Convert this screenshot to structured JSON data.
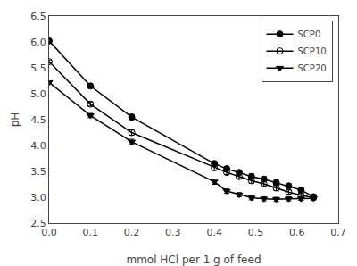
{
  "chart_data": {
    "type": "line",
    "xlabel": "mmol HCl per 1 g of feed",
    "ylabel": "pH",
    "x": [
      0.0,
      0.1,
      0.2,
      0.4,
      0.43,
      0.46,
      0.49,
      0.52,
      0.55,
      0.58,
      0.61,
      0.64
    ],
    "series": [
      {
        "name": "SCP0",
        "color": "black",
        "marker": "circle",
        "values": [
          6.02,
          5.15,
          4.55,
          3.65,
          3.55,
          3.48,
          3.4,
          3.35,
          3.28,
          3.22,
          3.14,
          3.01
        ],
        "yerr": [
          0.03,
          0.04,
          0.05,
          0.05,
          0.04,
          0.04,
          0.05,
          0.05,
          0.05,
          0.04,
          0.04,
          0.03
        ]
      },
      {
        "name": "SCP10",
        "color": "black",
        "marker": "circle-open",
        "values": [
          5.62,
          4.8,
          4.25,
          3.57,
          3.48,
          3.4,
          3.32,
          3.26,
          3.18,
          3.1,
          3.04,
          2.99
        ],
        "yerr": [
          0.03,
          0.04,
          0.05,
          0.05,
          0.04,
          0.04,
          0.05,
          0.04,
          0.05,
          0.04,
          0.03,
          0.03
        ]
      },
      {
        "name": "SCP20",
        "color": "black",
        "marker": "triangle-down",
        "values": [
          5.22,
          4.58,
          4.07,
          3.3,
          3.12,
          3.05,
          2.99,
          2.97,
          2.96,
          2.97,
          2.97,
          2.98
        ],
        "yerr": [
          0.03,
          0.04,
          0.05,
          0.05,
          0.04,
          0.04,
          0.04,
          0.04,
          0.04,
          0.04,
          0.03,
          0.03
        ]
      }
    ],
    "xlim": [
      0.0,
      0.7
    ],
    "ylim": [
      2.5,
      6.5
    ],
    "xticks": [
      {
        "value": 0,
        "label": "0.0"
      },
      0.1,
      0.2,
      0.3,
      0.4,
      0.5,
      0.6,
      0.7
    ],
    "yticks": [
      2.5,
      {
        "value": 3,
        "label": "3.0"
      },
      3.5,
      {
        "value": 4,
        "label": "4.0"
      },
      4.5,
      {
        "value": 5,
        "label": "5.0"
      },
      5.5,
      {
        "value": 6,
        "label": "6.0"
      },
      6.5
    ],
    "grid": false,
    "legend": "upper right"
  }
}
